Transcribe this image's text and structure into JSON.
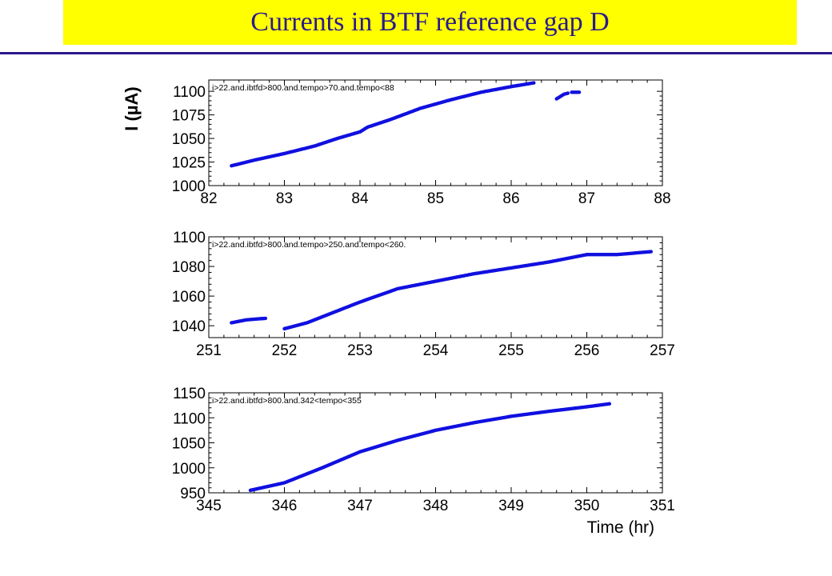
{
  "page": {
    "title": "Currents in BTF reference gap D",
    "banner_color": "#ffff00",
    "title_color": "#2a1a8c",
    "data_color": "#1010e0"
  },
  "chart_data": [
    {
      "type": "scatter",
      "title": "",
      "annotation": "i>22.and.ibtfd>800.and.tempo>70.and.tempo<88",
      "ylabel": "I (µA)",
      "xlabel": "",
      "xlim": [
        82,
        88
      ],
      "ylim": [
        1000,
        1112
      ],
      "xticks": [
        82,
        83,
        84,
        85,
        86,
        87,
        88
      ],
      "yticks": [
        1000,
        1025,
        1050,
        1075,
        1100
      ],
      "grid": false,
      "segments": [
        {
          "x": [
            82.3,
            82.6,
            83.0,
            83.4,
            83.7,
            84.0,
            84.1,
            84.4,
            84.8,
            85.2,
            85.6,
            86.0,
            86.3
          ],
          "y": [
            1021,
            1027,
            1034,
            1042,
            1050,
            1057,
            1062,
            1070,
            1082,
            1091,
            1099,
            1105,
            1109
          ]
        },
        {
          "x": [
            86.6,
            86.7,
            86.75
          ],
          "y": [
            1092,
            1097,
            1098
          ]
        },
        {
          "x": [
            86.8,
            86.9
          ],
          "y": [
            1099,
            1099
          ]
        }
      ]
    },
    {
      "type": "scatter",
      "title": "",
      "annotation": "i>22.and.ibtfd>800.and.tempo>250.and.tempo<260.",
      "ylabel": "",
      "xlabel": "",
      "xlim": [
        251,
        257
      ],
      "ylim": [
        1032,
        1100
      ],
      "xticks": [
        251,
        252,
        253,
        254,
        255,
        256,
        257
      ],
      "yticks": [
        1040,
        1060,
        1080,
        1100
      ],
      "grid": false,
      "segments": [
        {
          "x": [
            251.3,
            251.5,
            251.75
          ],
          "y": [
            1042,
            1044,
            1045
          ]
        },
        {
          "x": [
            252.0,
            252.3,
            252.7,
            253.0,
            253.5,
            254.0,
            254.5,
            255.0,
            255.5,
            256.0
          ],
          "y": [
            1038,
            1042,
            1050,
            1056,
            1065,
            1070,
            1075,
            1079,
            1083,
            1088
          ]
        },
        {
          "x": [
            256.0,
            256.4,
            256.85
          ],
          "y": [
            1088,
            1088,
            1090
          ]
        }
      ]
    },
    {
      "type": "scatter",
      "title": "",
      "annotation": "i>22.and.ibtfd>800.and.342<tempo<355",
      "ylabel": "",
      "xlabel": "Time (hr)",
      "xlim": [
        345,
        351
      ],
      "ylim": [
        950,
        1150
      ],
      "xticks": [
        345,
        346,
        347,
        348,
        349,
        350,
        351
      ],
      "yticks": [
        950,
        1000,
        1050,
        1100,
        1150
      ],
      "grid": false,
      "segments": [
        {
          "x": [
            345.55,
            346.0,
            346.5,
            347.0,
            347.5,
            348.0,
            348.5,
            349.0,
            349.5,
            350.0,
            350.3
          ],
          "y": [
            955,
            970,
            1000,
            1032,
            1055,
            1075,
            1090,
            1103,
            1113,
            1122,
            1128
          ]
        }
      ]
    }
  ]
}
